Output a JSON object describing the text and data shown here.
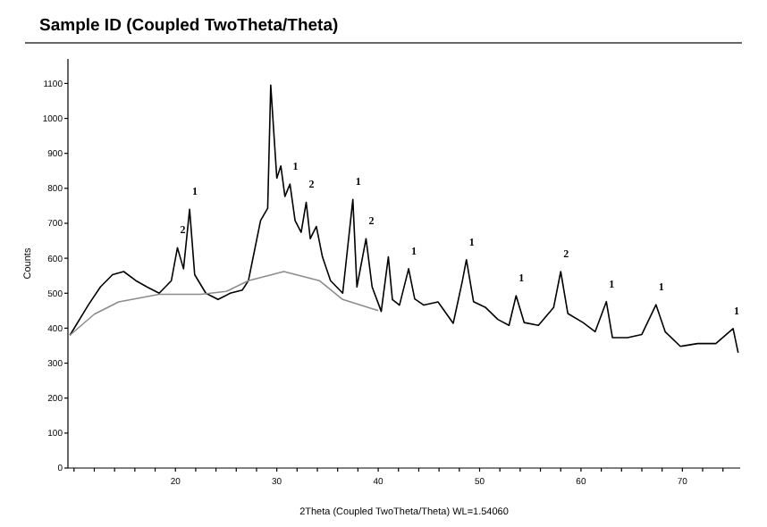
{
  "chart_data": {
    "type": "line",
    "title": "Sample ID (Coupled TwoTheta/Theta)",
    "xlabel": "2Theta (Coupled TwoTheta/Theta) WL=1.54060",
    "ylabel": "Counts",
    "xlim": [
      9.4,
      75.7
    ],
    "ylim": [
      0,
      1170
    ],
    "xticks": [
      {
        "value": 10,
        "label": null
      },
      {
        "value": 12,
        "label": null
      },
      {
        "value": 14,
        "label": null
      },
      {
        "value": 16,
        "label": null
      },
      {
        "value": 18,
        "label": null
      },
      20,
      {
        "value": 22,
        "label": null
      },
      {
        "value": 24,
        "label": null
      },
      {
        "value": 26,
        "label": null
      },
      {
        "value": 28,
        "label": null
      },
      30,
      {
        "value": 32,
        "label": null
      },
      {
        "value": 34,
        "label": null
      },
      {
        "value": 36,
        "label": null
      },
      {
        "value": 38,
        "label": null
      },
      40,
      {
        "value": 42,
        "label": null
      },
      {
        "value": 44,
        "label": null
      },
      {
        "value": 46,
        "label": null
      },
      {
        "value": 48,
        "label": null
      },
      50,
      {
        "value": 52,
        "label": null
      },
      {
        "value": 54,
        "label": null
      },
      {
        "value": 56,
        "label": null
      },
      {
        "value": 58,
        "label": null
      },
      60,
      {
        "value": 62,
        "label": null
      },
      {
        "value": 64,
        "label": null
      },
      {
        "value": 66,
        "label": null
      },
      {
        "value": 68,
        "label": null
      },
      70,
      {
        "value": 72,
        "label": null
      },
      {
        "value": 74,
        "label": null
      }
    ],
    "yticks": [
      0,
      100,
      200,
      300,
      400,
      500,
      600,
      700,
      800,
      900,
      1000,
      1100
    ],
    "grid": false,
    "marker": "none",
    "line_style": "solid",
    "series": [
      {
        "color": "#000000",
        "x": [
          9.6,
          11.4,
          12.6,
          13.8,
          14.9,
          16.1,
          17.2,
          18.4,
          19.6,
          20.2,
          20.8,
          21.4,
          21.9,
          23.0,
          24.2,
          25.4,
          26.6,
          27.2,
          27.8,
          28.4,
          29.1,
          29.4,
          30.0,
          30.4,
          30.8,
          31.3,
          31.8,
          32.4,
          32.9,
          33.3,
          33.9,
          34.5,
          35.3,
          36.5,
          37.5,
          37.9,
          38.8,
          39.4,
          40.3,
          41.0,
          41.4,
          42.1,
          43.0,
          43.6,
          44.5,
          45.9,
          47.4,
          48.3,
          48.7,
          49.4,
          50.6,
          51.8,
          52.9,
          53.6,
          54.4,
          55.8,
          57.3,
          58.0,
          58.7,
          60.2,
          61.4,
          62.5,
          63.1,
          64.6,
          66.0,
          67.4,
          68.3,
          69.8,
          71.5,
          73.3,
          75.0,
          75.5
        ],
        "values": [
          380,
          466,
          518,
          553,
          562,
          536,
          518,
          500,
          536,
          630,
          570,
          740,
          553,
          500,
          482,
          500,
          509,
          536,
          622,
          708,
          743,
          1095,
          829,
          864,
          777,
          812,
          708,
          674,
          760,
          656,
          691,
          604,
          536,
          500,
          768,
          518,
          656,
          518,
          448,
          604,
          482,
          466,
          570,
          484,
          466,
          475,
          414,
          535,
          596,
          476,
          459,
          425,
          408,
          493,
          416,
          408,
          459,
          562,
          442,
          416,
          390,
          476,
          373,
          373,
          382,
          467,
          390,
          348,
          356,
          356,
          399,
          330
        ]
      },
      {
        "color": "#8c8c8c",
        "x": [
          9.6,
          12,
          14.4,
          18.4,
          22.5,
          25,
          27.2,
          30.7,
          34.2,
          36.5,
          40
        ],
        "values": [
          380,
          440,
          475,
          497,
          497,
          505,
          536,
          562,
          536,
          482,
          450
        ]
      }
    ],
    "annotations": [
      {
        "text": "2",
        "x": 20.2,
        "y": 630
      },
      {
        "text": "1",
        "x": 21.4,
        "y": 740
      },
      {
        "text": "1",
        "x": 31.3,
        "y": 812
      },
      {
        "text": "2",
        "x": 32.9,
        "y": 760
      },
      {
        "text": "1",
        "x": 37.5,
        "y": 768
      },
      {
        "text": "2",
        "x": 38.8,
        "y": 656
      },
      {
        "text": "1",
        "x": 43.0,
        "y": 570
      },
      {
        "text": "1",
        "x": 48.7,
        "y": 596
      },
      {
        "text": "1",
        "x": 53.6,
        "y": 493
      },
      {
        "text": "2",
        "x": 58.0,
        "y": 562
      },
      {
        "text": "1",
        "x": 62.5,
        "y": 476
      },
      {
        "text": "1",
        "x": 67.4,
        "y": 467
      },
      {
        "text": "1",
        "x": 75.0,
        "y": 399
      }
    ]
  }
}
